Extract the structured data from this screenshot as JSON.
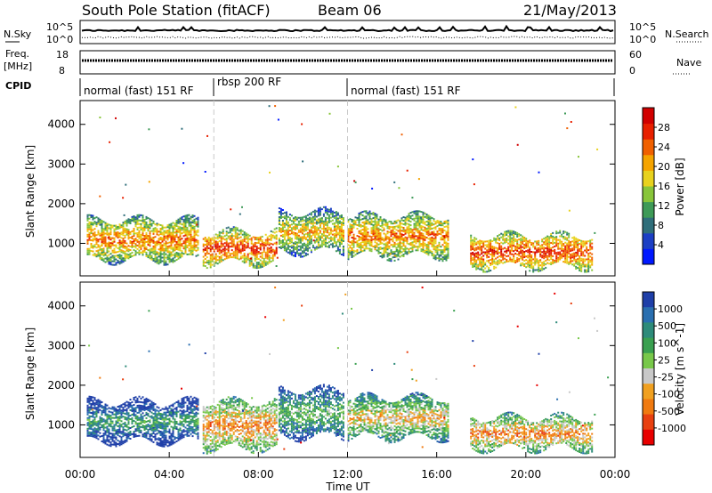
{
  "header": {
    "station": "South Pole Station (fitACF)",
    "beam": "Beam 06",
    "date": "21/May/2013"
  },
  "noise_panel": {
    "left_label": "N.Sky",
    "right_label": "N.Search",
    "left_ticks": [
      "10^5",
      "10^0"
    ],
    "right_ticks": [
      "10^5",
      "10^0"
    ]
  },
  "freq_panel": {
    "left_label_1": "Freq.",
    "left_label_2": "[MHz]",
    "right_label": "Nave",
    "left_ticks": [
      "18",
      "8"
    ],
    "right_ticks": [
      "60",
      "0"
    ]
  },
  "cpid_panel": {
    "label": "CPID",
    "segments": [
      {
        "text": "normal (fast) 151 RF",
        "start_hour": 0,
        "end_hour": 6
      },
      {
        "text": "rbsp 200 RF",
        "start_hour": 6,
        "end_hour": 12
      },
      {
        "text": "normal (fast) 151 RF",
        "start_hour": 12,
        "end_hour": 24
      }
    ]
  },
  "colorbars": {
    "power": {
      "label": "Power [dB]",
      "ticks": [
        "4",
        "8",
        "12",
        "16",
        "20",
        "24",
        "28"
      ],
      "colors": [
        "#0018ff",
        "#1c3fc4",
        "#2f6e7a",
        "#3e9a57",
        "#88c53a",
        "#e8d21e",
        "#f5a400",
        "#f06000",
        "#e82000",
        "#d10000"
      ]
    },
    "velocity": {
      "label": "Velocity [m s^-1]",
      "ticks": [
        "1000",
        "500",
        "100",
        "25",
        "-25",
        "-100",
        "-500",
        "-1000"
      ],
      "colors": [
        "#1f3fa8",
        "#2a6fb0",
        "#2e8b7a",
        "#3aa050",
        "#78c84a",
        "#c8c8c8",
        "#f0a020",
        "#f07a10",
        "#e84010",
        "#e80000"
      ]
    }
  },
  "chart_data": {
    "type": "heatmap",
    "time_axis": {
      "label": "Time UT",
      "ticks": [
        "00:00",
        "04:00",
        "08:00",
        "12:00",
        "16:00",
        "20:00",
        "00:00"
      ],
      "range_hours": [
        0,
        24
      ]
    },
    "range_axis": {
      "label": "Slant Range [km]",
      "ticks": [
        "1000",
        "2000",
        "3000",
        "4000"
      ],
      "range_km": [
        180,
        4600
      ]
    },
    "mode_change_hours": [
      6,
      12
    ],
    "power_regions": [
      {
        "t0": 0.3,
        "t1": 5.3,
        "r0": 600,
        "r1": 1600,
        "level": 7
      },
      {
        "t0": 5.5,
        "t1": 8.8,
        "r0": 500,
        "r1": 1300,
        "level": 8
      },
      {
        "t0": 8.9,
        "t1": 11.8,
        "r0": 800,
        "r1": 1800,
        "level": 6
      },
      {
        "t0": 12.0,
        "t1": 16.5,
        "r0": 700,
        "r1": 1700,
        "level": 7
      },
      {
        "t0": 17.5,
        "t1": 23.0,
        "r0": 400,
        "r1": 1200,
        "level": 8
      }
    ],
    "velocity_regions": [
      {
        "t0": 0.3,
        "t1": 5.3,
        "r0": 600,
        "r1": 1600,
        "level": 3
      },
      {
        "t0": 5.5,
        "t1": 8.8,
        "r0": 400,
        "r1": 1600,
        "level": 7
      },
      {
        "t0": 8.9,
        "t1": 11.8,
        "r0": 700,
        "r1": 1900,
        "level": 4
      },
      {
        "t0": 12.0,
        "t1": 16.5,
        "r0": 700,
        "r1": 1700,
        "level": 6
      },
      {
        "t0": 17.5,
        "t1": 23.0,
        "r0": 400,
        "r1": 1200,
        "level": 7
      }
    ]
  }
}
